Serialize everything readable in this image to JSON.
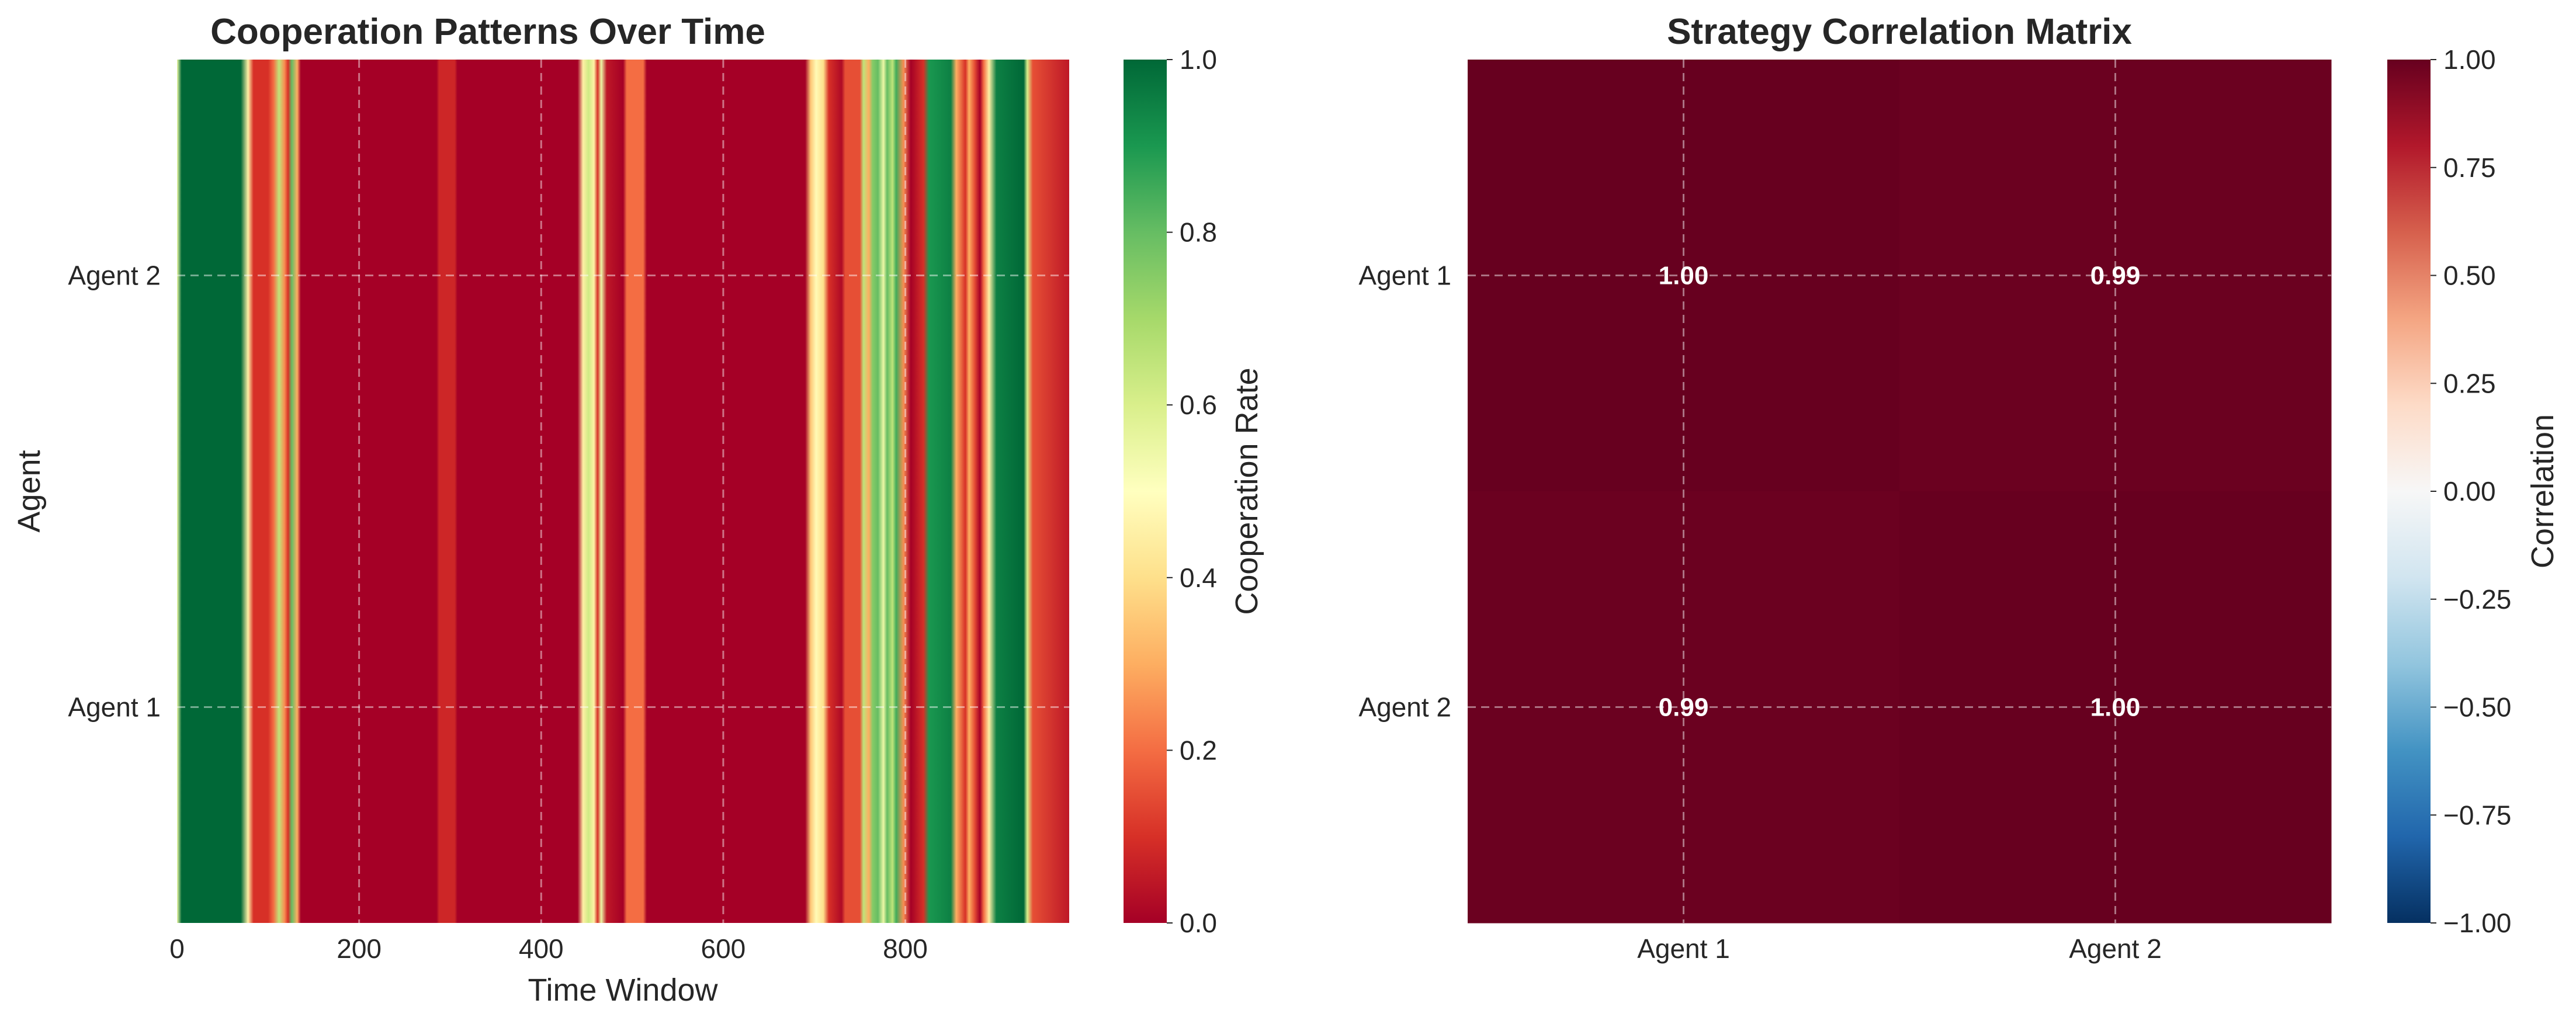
{
  "chart_data": [
    {
      "type": "heatmap",
      "title": "Cooperation Patterns Over Time",
      "xlabel": "Time Window",
      "ylabel": "Agent",
      "xlim": [
        0,
        980
      ],
      "xticks": [
        0,
        200,
        400,
        600,
        800
      ],
      "rows": [
        "Agent 2",
        "Agent 1"
      ],
      "colorbar": {
        "label": "Cooperation Rate",
        "range": [
          0.0,
          1.0
        ],
        "ticks": [
          "0.0",
          "0.2",
          "0.4",
          "0.6",
          "0.8",
          "1.0"
        ],
        "colormap": "RdYlGn"
      },
      "grid": true,
      "column_profile": [
        [
          0,
          0.55
        ],
        [
          5,
          1.0
        ],
        [
          70,
          1.0
        ],
        [
          78,
          0.45
        ],
        [
          84,
          0.1
        ],
        [
          100,
          0.1
        ],
        [
          106,
          0.2
        ],
        [
          112,
          0.65
        ],
        [
          118,
          0.25
        ],
        [
          122,
          0.1
        ],
        [
          126,
          0.8
        ],
        [
          132,
          0.3
        ],
        [
          136,
          0.0
        ],
        [
          285,
          0.0
        ],
        [
          288,
          0.08
        ],
        [
          305,
          0.08
        ],
        [
          308,
          0.0
        ],
        [
          440,
          0.0
        ],
        [
          446,
          0.45
        ],
        [
          452,
          0.62
        ],
        [
          458,
          0.45
        ],
        [
          462,
          0.1
        ],
        [
          466,
          0.55
        ],
        [
          472,
          0.05
        ],
        [
          490,
          0.0
        ],
        [
          494,
          0.2
        ],
        [
          512,
          0.2
        ],
        [
          516,
          0.0
        ],
        [
          690,
          0.0
        ],
        [
          696,
          0.35
        ],
        [
          702,
          0.48
        ],
        [
          710,
          0.4
        ],
        [
          716,
          0.1
        ],
        [
          730,
          0.02
        ],
        [
          734,
          0.15
        ],
        [
          750,
          0.15
        ],
        [
          754,
          0.65
        ],
        [
          760,
          0.3
        ],
        [
          764,
          0.75
        ],
        [
          770,
          0.8
        ],
        [
          776,
          0.55
        ],
        [
          780,
          0.8
        ],
        [
          786,
          0.65
        ],
        [
          790,
          0.85
        ],
        [
          798,
          0.25
        ],
        [
          806,
          0.0
        ],
        [
          820,
          0.1
        ],
        [
          826,
          0.9
        ],
        [
          850,
          0.95
        ],
        [
          856,
          0.3
        ],
        [
          866,
          0.1
        ],
        [
          870,
          0.3
        ],
        [
          876,
          0.15
        ],
        [
          882,
          0.0
        ],
        [
          886,
          0.2
        ],
        [
          892,
          0.45
        ],
        [
          900,
          0.95
        ],
        [
          930,
          1.0
        ],
        [
          934,
          0.6
        ],
        [
          940,
          0.15
        ],
        [
          980,
          0.05
        ]
      ]
    },
    {
      "type": "heatmap",
      "title": "Strategy Correlation Matrix",
      "xlabel": "",
      "ylabel": "",
      "rows": [
        "Agent 1",
        "Agent 2"
      ],
      "columns": [
        "Agent 1",
        "Agent 2"
      ],
      "values": [
        [
          1.0,
          0.99
        ],
        [
          0.99,
          1.0
        ]
      ],
      "annotations": [
        [
          "1.00",
          "0.99"
        ],
        [
          "0.99",
          "1.00"
        ]
      ],
      "colorbar": {
        "label": "Correlation",
        "range": [
          -1.0,
          1.0
        ],
        "ticks": [
          "1.00",
          "0.75",
          "0.50",
          "0.25",
          "0.00",
          "−0.25",
          "−0.50",
          "−0.75",
          "−1.00"
        ],
        "colormap": "RdBu_r"
      },
      "grid": true
    }
  ]
}
